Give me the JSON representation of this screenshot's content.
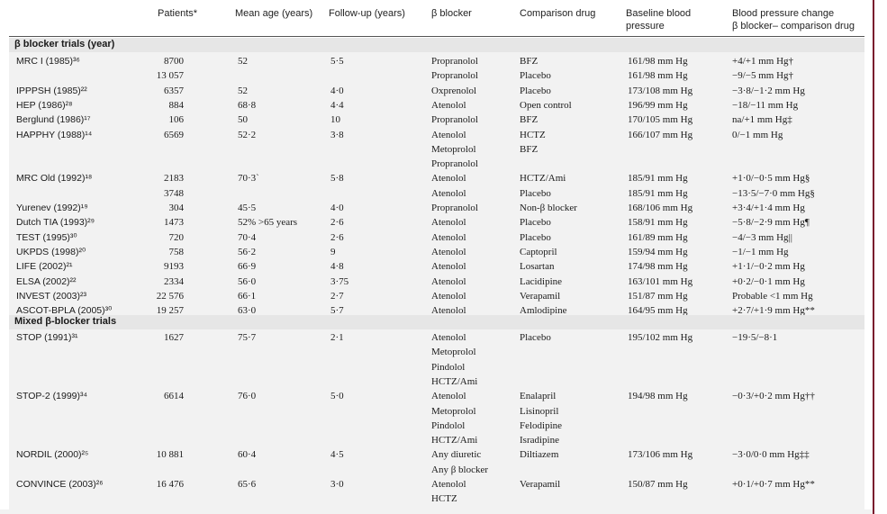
{
  "headers": {
    "patients": "Patients*",
    "mean_age": "Mean age (years)",
    "follow_up": "Follow-up (years)",
    "beta_blocker": "β blocker",
    "comparison": "Comparison drug",
    "baseline_line1": "Baseline blood",
    "baseline_line2": "pressure",
    "change_line1": "Blood pressure change",
    "change_line2": "β blocker– comparison drug"
  },
  "sections": {
    "beta": "β blocker trials (year)",
    "mixed": "Mixed β-blocker trials"
  },
  "rows": [
    {
      "trial": "MRC I (1985)³⁶",
      "patients": "8700",
      "age": "52",
      "fu": "5·5",
      "bb": "Propranolol",
      "cmp": "BFZ",
      "bp": "161/98 mm Hg",
      "chg": "+4/+1 mm Hg†"
    },
    {
      "trial": "",
      "patients": "13 057",
      "age": "",
      "fu": "",
      "bb": "Propranolol",
      "cmp": "Placebo",
      "bp": "161/98 mm Hg",
      "chg": "−9/−5 mm Hg†"
    },
    {
      "trial": "IPPPSH (1985)²²",
      "patients": "6357",
      "age": "52",
      "fu": "4·0",
      "bb": "Oxprenolol",
      "cmp": "Placebo",
      "bp": "173/108 mm Hg",
      "chg": "−3·8/−1·2 mm Hg"
    },
    {
      "trial": "HEP (1986)²⁸",
      "patients": "884",
      "age": "68·8",
      "fu": "4·4",
      "bb": "Atenolol",
      "cmp": "Open control",
      "bp": "196/99 mm Hg",
      "chg": "−18/−11 mm Hg"
    },
    {
      "trial": "Berglund (1986)¹⁷",
      "patients": "106",
      "age": "50",
      "fu": "10",
      "bb": "Propranolol",
      "cmp": "BFZ",
      "bp": "170/105 mm Hg",
      "chg": "na/+1 mm Hg‡"
    },
    {
      "trial": "HAPPHY (1988)¹⁴",
      "patients": "6569",
      "age": "52·2",
      "fu": "3·8",
      "bb": "Atenolol",
      "cmp": "HCTZ",
      "bp": "166/107 mm Hg",
      "chg": "0/−1 mm Hg"
    },
    {
      "trial": "",
      "patients": "",
      "age": "",
      "fu": "",
      "bb": "Metoprolol",
      "cmp": "BFZ",
      "bp": "",
      "chg": ""
    },
    {
      "trial": "",
      "patients": "",
      "age": "",
      "fu": "",
      "bb": "Propranolol",
      "cmp": "",
      "bp": "",
      "chg": ""
    },
    {
      "trial": "MRC Old (1992)¹⁸",
      "patients": "2183",
      "age": "70·3`",
      "fu": "5·8",
      "bb": "Atenolol",
      "cmp": "HCTZ/Ami",
      "bp": "185/91 mm Hg",
      "chg": "+1·0/−0·5 mm Hg§"
    },
    {
      "trial": "",
      "patients": "3748",
      "age": "",
      "fu": "",
      "bb": "Atenolol",
      "cmp": "Placebo",
      "bp": "185/91 mm Hg",
      "chg": "−13·5/−7·0 mm Hg§"
    },
    {
      "trial": "Yurenev (1992)¹⁹",
      "patients": "304",
      "age": "45·5",
      "fu": "4·0",
      "bb": "Propranolol",
      "cmp": "Non-β blocker",
      "bp": "168/106 mm Hg",
      "chg": "+3·4/+1·4 mm Hg"
    },
    {
      "trial": "Dutch TIA (1993)²⁹",
      "patients": "1473",
      "age": "52% >65 years",
      "fu": "2·6",
      "bb": "Atenolol",
      "cmp": "Placebo",
      "bp": "158/91 mm Hg",
      "chg": "−5·8/−2·9 mm Hg¶"
    },
    {
      "trial": "TEST (1995)³⁰",
      "patients": "720",
      "age": "70·4",
      "fu": "2·6",
      "bb": "Atenolol",
      "cmp": "Placebo",
      "bp": "161/89 mm Hg",
      "chg": "−4/−3 mm Hg||"
    },
    {
      "trial": "UKPDS (1998)²⁰",
      "patients": "758",
      "age": "56·2",
      "fu": "9",
      "bb": "Atenolol",
      "cmp": "Captopril",
      "bp": "159/94 mm Hg",
      "chg": "−1/−1 mm Hg"
    },
    {
      "trial": "LIFE (2002)²¹",
      "patients": "9193",
      "age": "66·9",
      "fu": "4·8",
      "bb": "Atenolol",
      "cmp": "Losartan",
      "bp": "174/98 mm Hg",
      "chg": "+1·1/−0·2 mm Hg"
    },
    {
      "trial": "ELSA (2002)²²",
      "patients": "2334",
      "age": "56·0",
      "fu": "3·75",
      "bb": "Atenolol",
      "cmp": "Lacidipine",
      "bp": "163/101 mm Hg",
      "chg": "+0·2/−0·1 mm Hg"
    },
    {
      "trial": "INVEST (2003)²³",
      "patients": "22 576",
      "age": "66·1",
      "fu": "2·7",
      "bb": "Atenolol",
      "cmp": "Verapamil",
      "bp": "151/87 mm Hg",
      "chg": "Probable <1 mm Hg"
    },
    {
      "trial": "ASCOT-BPLA (2005)³⁰",
      "patients": "19 257",
      "age": "63·0",
      "fu": "5·7",
      "bb": "Atenolol",
      "cmp": "Amlodipine",
      "bp": "164/95 mm Hg",
      "chg": "+2·7/+1·9 mm Hg**"
    }
  ],
  "mixed_rows": [
    {
      "trial": "STOP (1991)³¹",
      "patients": "1627",
      "age": "75·7",
      "fu": "2·1",
      "bb": "Atenolol",
      "cmp": "Placebo",
      "bp": "195/102 mm Hg",
      "chg": "−19·5/−8·1"
    },
    {
      "trial": "",
      "patients": "",
      "age": "",
      "fu": "",
      "bb": "Metoprolol",
      "cmp": "",
      "bp": "",
      "chg": ""
    },
    {
      "trial": "",
      "patients": "",
      "age": "",
      "fu": "",
      "bb": "Pindolol",
      "cmp": "",
      "bp": "",
      "chg": ""
    },
    {
      "trial": "",
      "patients": "",
      "age": "",
      "fu": "",
      "bb": "HCTZ/Ami",
      "cmp": "",
      "bp": "",
      "chg": ""
    },
    {
      "trial": "STOP-2 (1999)³⁴",
      "patients": "6614",
      "age": "76·0",
      "fu": "5·0",
      "bb": "Atenolol",
      "cmp": "Enalapril",
      "bp": "194/98 mm Hg",
      "chg": "−0·3/+0·2 mm Hg††"
    },
    {
      "trial": "",
      "patients": "",
      "age": "",
      "fu": "",
      "bb": "Metoprolol",
      "cmp": "Lisinopril",
      "bp": "",
      "chg": ""
    },
    {
      "trial": "",
      "patients": "",
      "age": "",
      "fu": "",
      "bb": "Pindolol",
      "cmp": "Felodipine",
      "bp": "",
      "chg": ""
    },
    {
      "trial": "",
      "patients": "",
      "age": "",
      "fu": "",
      "bb": "HCTZ/Ami",
      "cmp": "Isradipine",
      "bp": "",
      "chg": ""
    },
    {
      "trial": "NORDIL (2000)²⁵",
      "patients": "10 881",
      "age": "60·4",
      "fu": "4·5",
      "bb": "Any diuretic",
      "cmp": "Diltiazem",
      "bp": "173/106 mm Hg",
      "chg": "−3·0/0·0 mm Hg‡‡"
    },
    {
      "trial": "",
      "patients": "",
      "age": "",
      "fu": "",
      "bb": "Any β blocker",
      "cmp": "",
      "bp": "",
      "chg": ""
    },
    {
      "trial": "CONVINCE (2003)²⁶",
      "patients": "16 476",
      "age": "65·6",
      "fu": "3·0",
      "bb": "Atenolol",
      "cmp": "Verapamil",
      "bp": "150/87 mm Hg",
      "chg": "+0·1/+0·7 mm Hg**"
    },
    {
      "trial": "",
      "patients": "",
      "age": "",
      "fu": "",
      "bb": "HCTZ",
      "cmp": "",
      "bp": "",
      "chg": ""
    }
  ]
}
